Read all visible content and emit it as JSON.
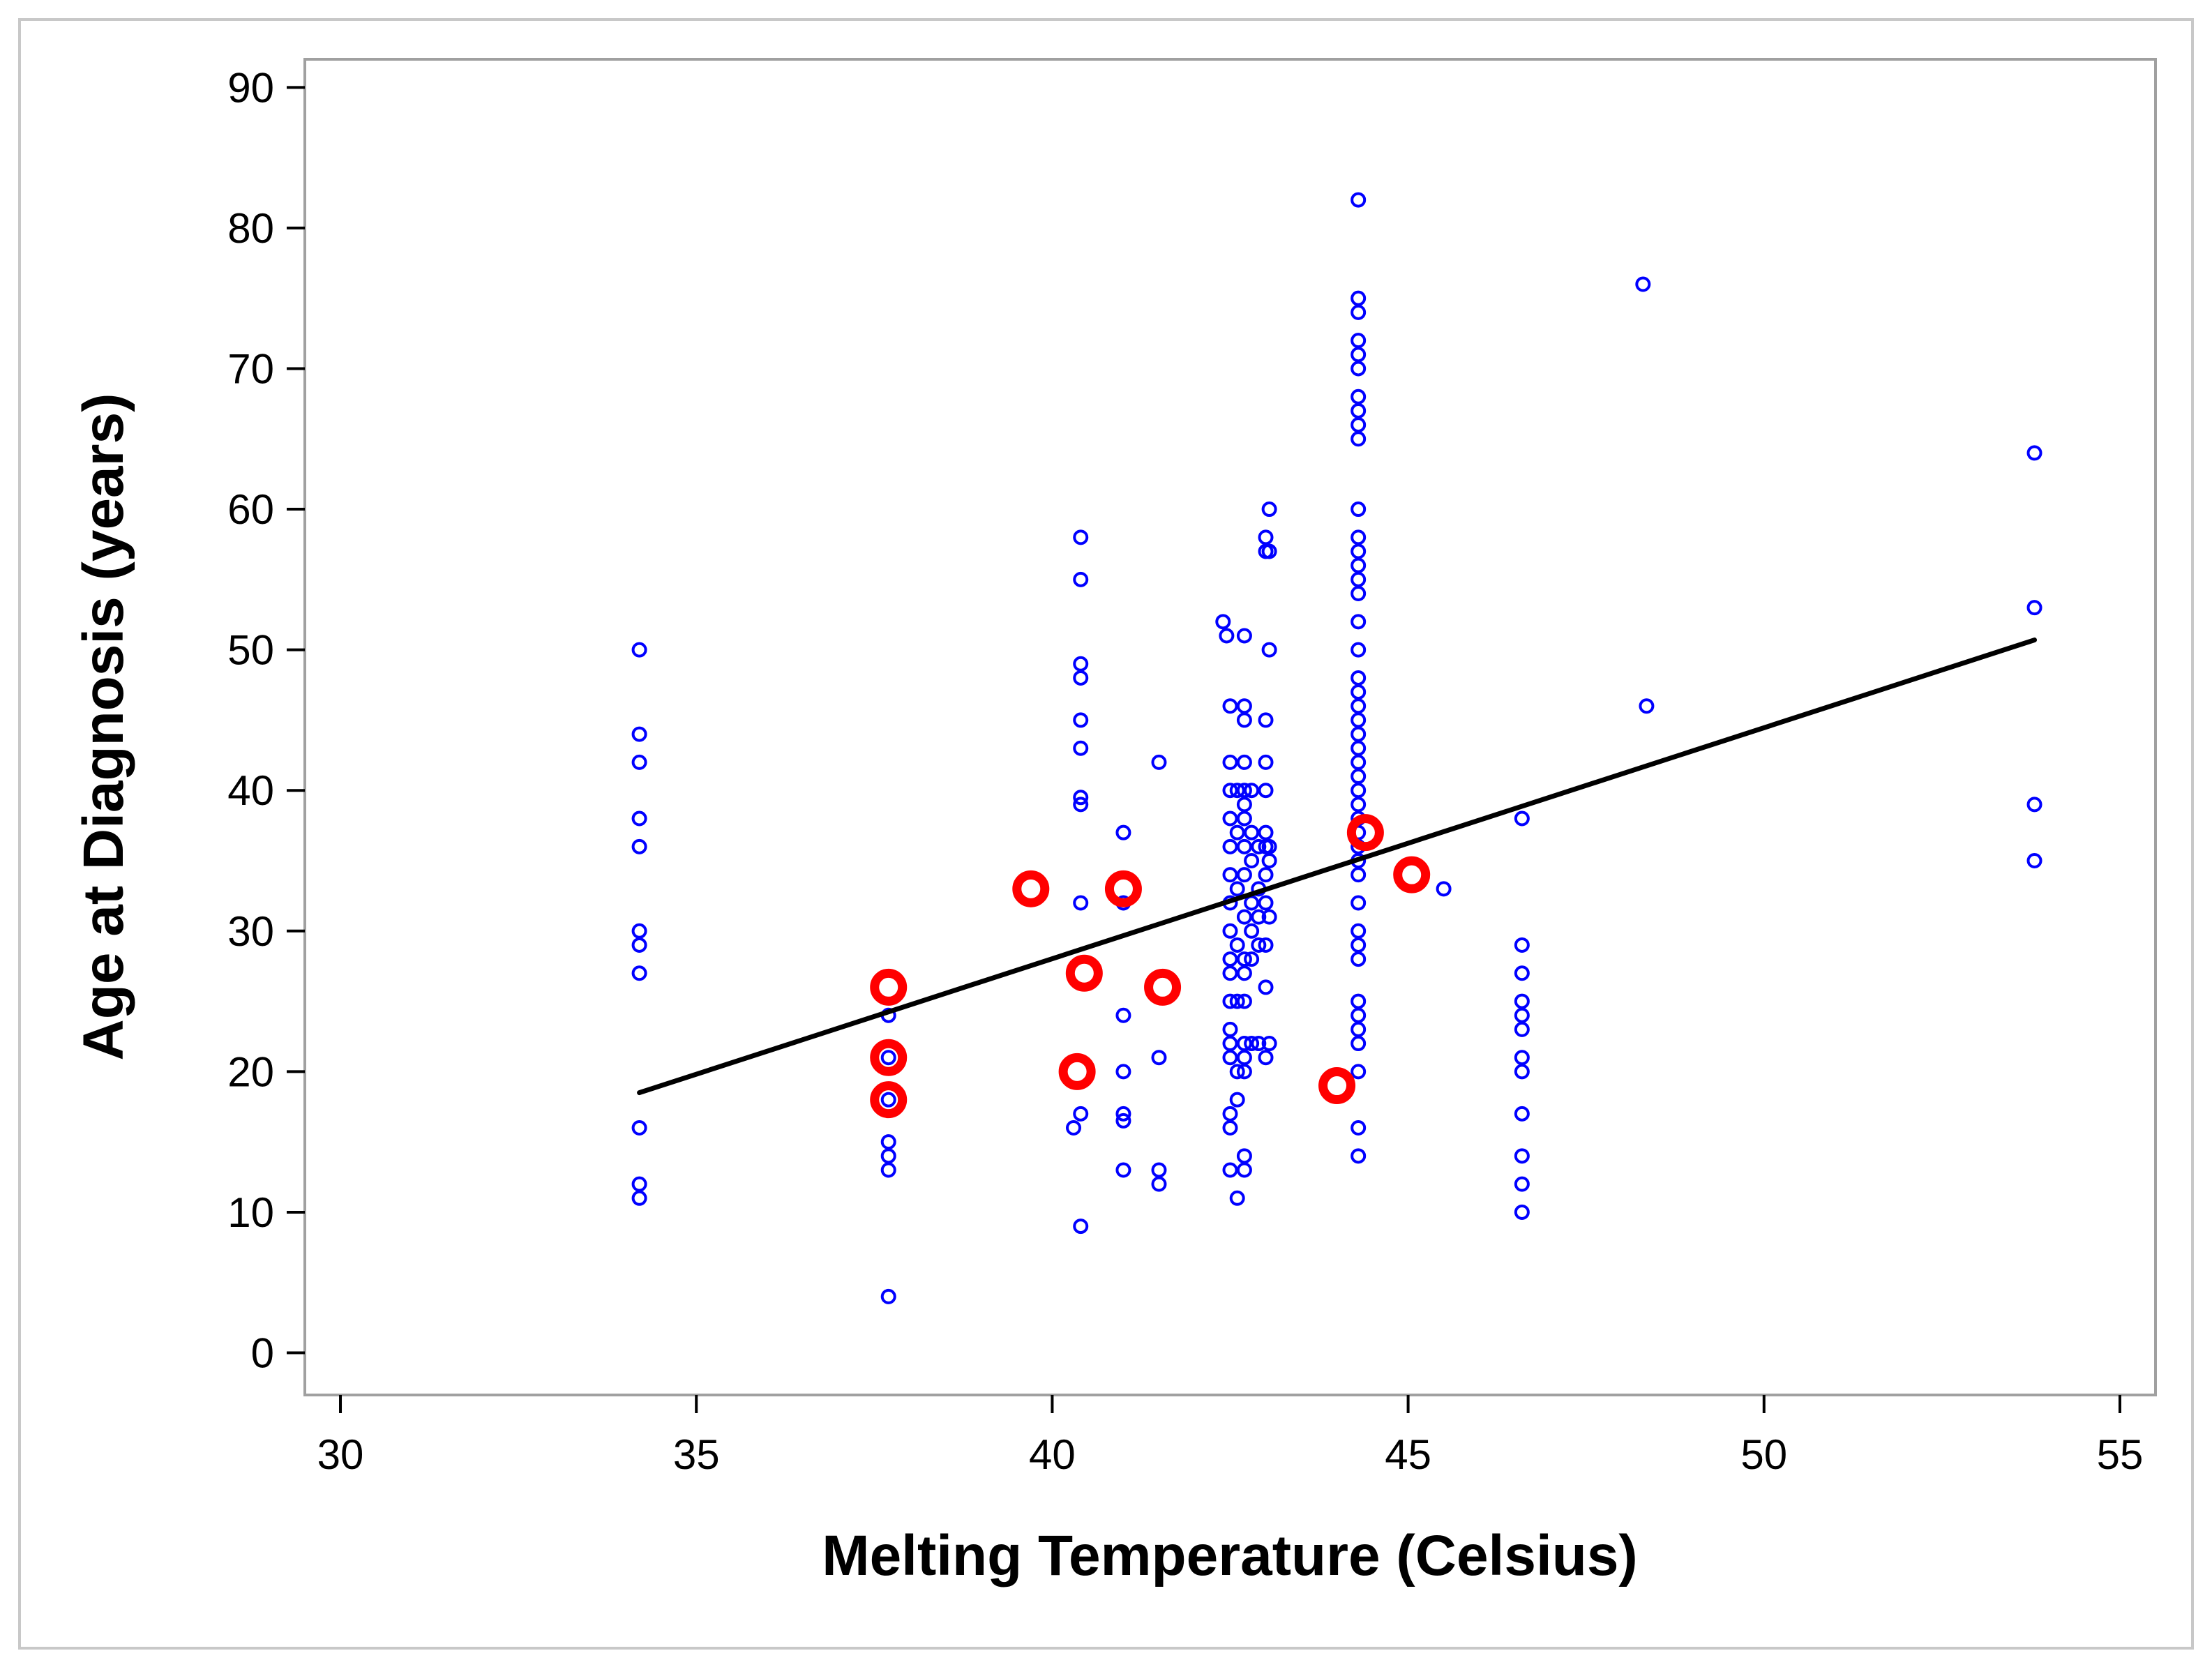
{
  "chart_data": {
    "type": "scatter",
    "title": "",
    "xlabel": "Melting Temperature (Celsius)",
    "ylabel": "Age at Diagnosis (years)",
    "xlim": [
      29.5,
      55.5
    ],
    "ylim": [
      -3,
      92
    ],
    "x_ticks": [
      30,
      35,
      40,
      45,
      50,
      55
    ],
    "y_ticks": [
      0,
      10,
      20,
      30,
      40,
      50,
      60,
      70,
      80,
      90
    ],
    "grid": false,
    "colors": {
      "blue": "#0000ff",
      "red": "#ff0000",
      "line": "#000000",
      "frame": "#a0a0a0"
    },
    "series": [
      {
        "name": "blue",
        "marker": "small-open-circle",
        "points": [
          [
            34.2,
            50
          ],
          [
            34.2,
            44
          ],
          [
            34.2,
            42
          ],
          [
            34.2,
            38
          ],
          [
            34.2,
            36
          ],
          [
            34.2,
            30
          ],
          [
            34.2,
            29
          ],
          [
            34.2,
            27
          ],
          [
            34.2,
            16
          ],
          [
            34.2,
            12
          ],
          [
            34.2,
            11
          ],
          [
            37.7,
            24
          ],
          [
            37.7,
            21
          ],
          [
            37.7,
            18
          ],
          [
            37.7,
            15
          ],
          [
            37.7,
            14
          ],
          [
            37.7,
            13
          ],
          [
            37.7,
            4
          ],
          [
            40.3,
            16
          ],
          [
            40.4,
            58
          ],
          [
            40.4,
            55
          ],
          [
            40.4,
            49
          ],
          [
            40.4,
            48
          ],
          [
            40.4,
            45
          ],
          [
            40.4,
            43
          ],
          [
            40.4,
            39.5
          ],
          [
            40.4,
            39
          ],
          [
            40.4,
            32
          ],
          [
            40.4,
            17
          ],
          [
            40.4,
            9
          ],
          [
            41.0,
            37
          ],
          [
            41.0,
            32
          ],
          [
            41.0,
            24
          ],
          [
            41.0,
            20
          ],
          [
            41.0,
            17
          ],
          [
            41.0,
            16.5
          ],
          [
            41.0,
            13
          ],
          [
            41.5,
            42
          ],
          [
            41.5,
            21
          ],
          [
            41.5,
            13
          ],
          [
            41.5,
            12
          ],
          [
            42.4,
            52
          ],
          [
            42.45,
            51
          ],
          [
            42.5,
            46
          ],
          [
            42.5,
            42
          ],
          [
            42.5,
            40
          ],
          [
            42.5,
            38
          ],
          [
            42.5,
            36
          ],
          [
            42.5,
            34
          ],
          [
            42.5,
            32
          ],
          [
            42.5,
            30
          ],
          [
            42.5,
            28
          ],
          [
            42.5,
            27
          ],
          [
            42.5,
            25
          ],
          [
            42.5,
            23
          ],
          [
            42.5,
            22
          ],
          [
            42.5,
            21
          ],
          [
            42.5,
            17
          ],
          [
            42.5,
            16
          ],
          [
            42.5,
            13
          ],
          [
            42.6,
            40
          ],
          [
            42.6,
            37
          ],
          [
            42.6,
            33
          ],
          [
            42.6,
            29
          ],
          [
            42.6,
            25
          ],
          [
            42.6,
            20
          ],
          [
            42.6,
            18
          ],
          [
            42.6,
            11
          ],
          [
            42.7,
            51
          ],
          [
            42.7,
            46
          ],
          [
            42.7,
            45
          ],
          [
            42.7,
            42
          ],
          [
            42.7,
            40
          ],
          [
            42.7,
            39
          ],
          [
            42.7,
            38
          ],
          [
            42.7,
            36
          ],
          [
            42.7,
            34
          ],
          [
            42.7,
            31
          ],
          [
            42.7,
            28
          ],
          [
            42.7,
            27
          ],
          [
            42.7,
            25
          ],
          [
            42.7,
            22
          ],
          [
            42.7,
            21
          ],
          [
            42.7,
            20
          ],
          [
            42.7,
            14
          ],
          [
            42.7,
            13
          ],
          [
            42.8,
            40
          ],
          [
            42.8,
            37
          ],
          [
            42.8,
            35
          ],
          [
            42.8,
            32
          ],
          [
            42.8,
            30
          ],
          [
            42.8,
            28
          ],
          [
            42.8,
            22
          ],
          [
            42.9,
            36
          ],
          [
            42.9,
            33
          ],
          [
            42.9,
            31
          ],
          [
            42.9,
            29
          ],
          [
            42.9,
            22
          ],
          [
            43.0,
            58
          ],
          [
            43.0,
            57
          ],
          [
            43.0,
            45
          ],
          [
            43.0,
            42
          ],
          [
            43.0,
            40
          ],
          [
            43.0,
            37
          ],
          [
            43.0,
            36
          ],
          [
            43.0,
            34
          ],
          [
            43.0,
            32
          ],
          [
            43.0,
            29
          ],
          [
            43.0,
            26
          ],
          [
            43.0,
            21
          ],
          [
            43.05,
            60
          ],
          [
            43.05,
            57
          ],
          [
            43.05,
            50
          ],
          [
            43.05,
            36
          ],
          [
            43.05,
            35
          ],
          [
            43.05,
            31
          ],
          [
            43.05,
            22
          ],
          [
            44.3,
            82
          ],
          [
            44.3,
            75
          ],
          [
            44.3,
            74
          ],
          [
            44.3,
            72
          ],
          [
            44.3,
            71
          ],
          [
            44.3,
            70
          ],
          [
            44.3,
            68
          ],
          [
            44.3,
            67
          ],
          [
            44.3,
            66
          ],
          [
            44.3,
            65
          ],
          [
            44.3,
            60
          ],
          [
            44.3,
            58
          ],
          [
            44.3,
            57
          ],
          [
            44.3,
            56
          ],
          [
            44.3,
            55
          ],
          [
            44.3,
            54
          ],
          [
            44.3,
            52
          ],
          [
            44.3,
            50
          ],
          [
            44.3,
            48
          ],
          [
            44.3,
            47
          ],
          [
            44.3,
            46
          ],
          [
            44.3,
            45
          ],
          [
            44.3,
            44
          ],
          [
            44.3,
            43
          ],
          [
            44.3,
            42
          ],
          [
            44.3,
            41
          ],
          [
            44.3,
            40
          ],
          [
            44.3,
            39
          ],
          [
            44.3,
            38
          ],
          [
            44.3,
            37
          ],
          [
            44.3,
            36
          ],
          [
            44.3,
            35
          ],
          [
            44.3,
            34
          ],
          [
            44.3,
            32
          ],
          [
            44.3,
            30
          ],
          [
            44.3,
            29
          ],
          [
            44.3,
            28
          ],
          [
            44.3,
            25
          ],
          [
            44.3,
            24
          ],
          [
            44.3,
            23
          ],
          [
            44.3,
            22
          ],
          [
            44.3,
            20
          ],
          [
            44.3,
            16
          ],
          [
            44.3,
            14
          ],
          [
            45.5,
            33
          ],
          [
            46.6,
            38
          ],
          [
            46.6,
            29
          ],
          [
            46.6,
            27
          ],
          [
            46.6,
            25
          ],
          [
            46.6,
            24
          ],
          [
            46.6,
            23
          ],
          [
            46.6,
            21
          ],
          [
            46.6,
            20
          ],
          [
            46.6,
            17
          ],
          [
            46.6,
            14
          ],
          [
            46.6,
            12
          ],
          [
            46.6,
            10
          ],
          [
            48.3,
            76
          ],
          [
            48.35,
            46
          ],
          [
            53.8,
            64
          ],
          [
            53.8,
            53
          ],
          [
            53.8,
            39
          ],
          [
            53.8,
            35
          ]
        ]
      },
      {
        "name": "red",
        "marker": "large-open-circle",
        "points": [
          [
            37.7,
            26
          ],
          [
            37.7,
            21
          ],
          [
            37.7,
            18
          ],
          [
            39.7,
            33
          ],
          [
            40.35,
            20
          ],
          [
            40.45,
            27
          ],
          [
            41.0,
            33
          ],
          [
            41.55,
            26
          ],
          [
            44.0,
            19
          ],
          [
            44.4,
            37
          ],
          [
            45.05,
            34
          ]
        ]
      }
    ],
    "fit_line": {
      "x": [
        34.2,
        53.8
      ],
      "y": [
        18.5,
        50.7
      ]
    }
  }
}
